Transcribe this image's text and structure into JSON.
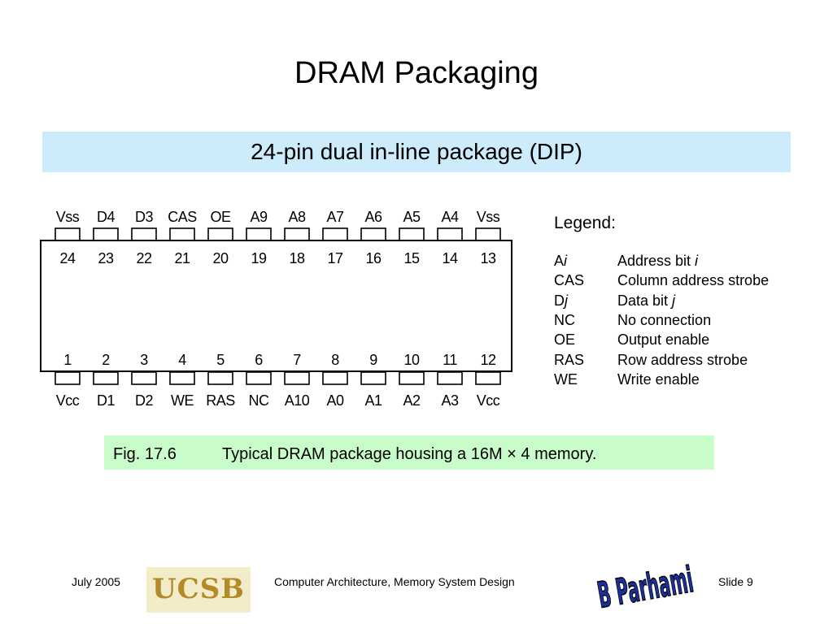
{
  "slide": {
    "title": "DRAM Packaging",
    "subtitle": "24-pin dual in-line package (DIP)"
  },
  "chip": {
    "top_pin_labels": [
      "Vss",
      "D4",
      "D3",
      "CAS",
      "OE",
      "A9",
      "A8",
      "A7",
      "A6",
      "A5",
      "A4",
      "Vss"
    ],
    "top_pin_numbers": [
      "24",
      "23",
      "22",
      "21",
      "20",
      "19",
      "18",
      "17",
      "16",
      "15",
      "14",
      "13"
    ],
    "bottom_pin_numbers": [
      "1",
      "2",
      "3",
      "4",
      "5",
      "6",
      "7",
      "8",
      "9",
      "10",
      "11",
      "12"
    ],
    "bottom_pin_labels": [
      "Vcc",
      "D1",
      "D2",
      "WE",
      "RAS",
      "NC",
      "A10",
      "A0",
      "A1",
      "A2",
      "A3",
      "Vcc"
    ]
  },
  "legend": {
    "title": "Legend:",
    "rows": [
      {
        "term": "A",
        "term_italic": "i",
        "def": "Address bit ",
        "def_italic": "i"
      },
      {
        "term": "CAS",
        "term_italic": "",
        "def": "Column address strobe",
        "def_italic": ""
      },
      {
        "term": "D",
        "term_italic": "j",
        "def": "Data bit ",
        "def_italic": "j"
      },
      {
        "term": "NC",
        "term_italic": "",
        "def": "No connection",
        "def_italic": ""
      },
      {
        "term": "OE",
        "term_italic": "",
        "def": "Output enable",
        "def_italic": ""
      },
      {
        "term": "RAS",
        "term_italic": "",
        "def": "Row address strobe",
        "def_italic": ""
      },
      {
        "term": "WE",
        "term_italic": "",
        "def": "Write enable",
        "def_italic": ""
      }
    ]
  },
  "caption": {
    "fig_number": "Fig. 17.6",
    "text": "Typical DRAM package housing a 16M × 4 memory."
  },
  "footer": {
    "date": "July 2005",
    "logo_text": "UCSB",
    "course": "Computer Architecture, Memory System Design",
    "signature_text": "B Parhami",
    "slide_label": "Slide 9"
  },
  "colors": {
    "subtitle_band": "#ccecfc",
    "caption_band": "#c8fcc8",
    "logo_gold": "#b28a2a",
    "signature_blue": "#1c2f9a"
  }
}
